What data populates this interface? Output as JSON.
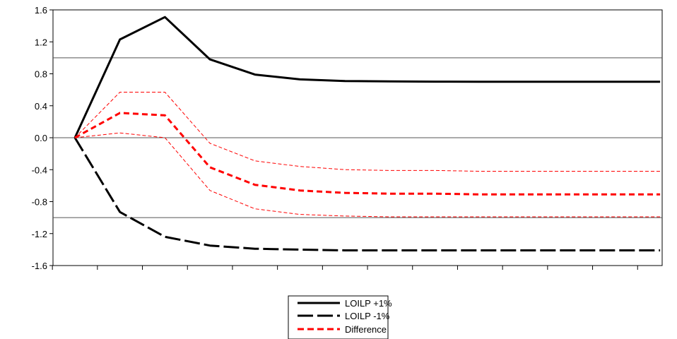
{
  "chart_data": {
    "type": "line",
    "title": "",
    "xlabel": "",
    "ylabel": "",
    "ylim": [
      -1.6,
      1.6
    ],
    "yticks": [
      "1.6",
      "1.2",
      "0.8",
      "0.4",
      "0.0",
      "-0.4",
      "-0.8",
      "-1.2",
      "-1.6"
    ],
    "x": [
      1,
      2,
      3,
      4,
      5,
      6,
      7,
      8,
      9,
      10,
      11,
      12,
      13,
      14
    ],
    "reference_lines": [
      1.0,
      0.0,
      -1.0
    ],
    "grid": false,
    "legend_position": "bottom-center",
    "series": [
      {
        "name": "LOILP +1%",
        "color": "#000000",
        "style": "solid",
        "values": [
          0.0,
          1.23,
          1.51,
          0.98,
          0.79,
          0.73,
          0.71,
          0.705,
          0.702,
          0.7,
          0.7,
          0.7,
          0.7,
          0.7
        ]
      },
      {
        "name": "LOILP -1%",
        "color": "#000000",
        "style": "long-dash",
        "values": [
          0.0,
          -0.93,
          -1.24,
          -1.35,
          -1.39,
          -1.4,
          -1.41,
          -1.41,
          -1.41,
          -1.41,
          -1.41,
          -1.41,
          -1.41,
          -1.41
        ]
      },
      {
        "name": "Difference",
        "color": "#ff0000",
        "style": "dash",
        "values": [
          0.0,
          0.31,
          0.28,
          -0.37,
          -0.59,
          -0.66,
          -0.69,
          -0.7,
          -0.7,
          -0.71,
          -0.71,
          -0.71,
          -0.71,
          -0.71
        ]
      },
      {
        "name": "",
        "color": "#ff0000",
        "style": "thin-dash",
        "values": [
          0.0,
          0.57,
          0.57,
          -0.07,
          -0.29,
          -0.36,
          -0.4,
          -0.41,
          -0.41,
          -0.42,
          -0.42,
          -0.42,
          -0.42,
          -0.42
        ]
      },
      {
        "name": "",
        "color": "#ff0000",
        "style": "thin-dash",
        "values": [
          0.0,
          0.06,
          0.0,
          -0.66,
          -0.89,
          -0.96,
          -0.98,
          -0.99,
          -0.99,
          -0.99,
          -0.99,
          -0.99,
          -0.99,
          -0.99
        ]
      }
    ]
  },
  "legend": {
    "items": [
      {
        "label": "LOILP +1%",
        "style": "solid",
        "color": "#000000"
      },
      {
        "label": "LOILP -1%",
        "style": "long-dash",
        "color": "#000000"
      },
      {
        "label": "Difference",
        "style": "dash",
        "color": "#ff0000"
      }
    ]
  }
}
